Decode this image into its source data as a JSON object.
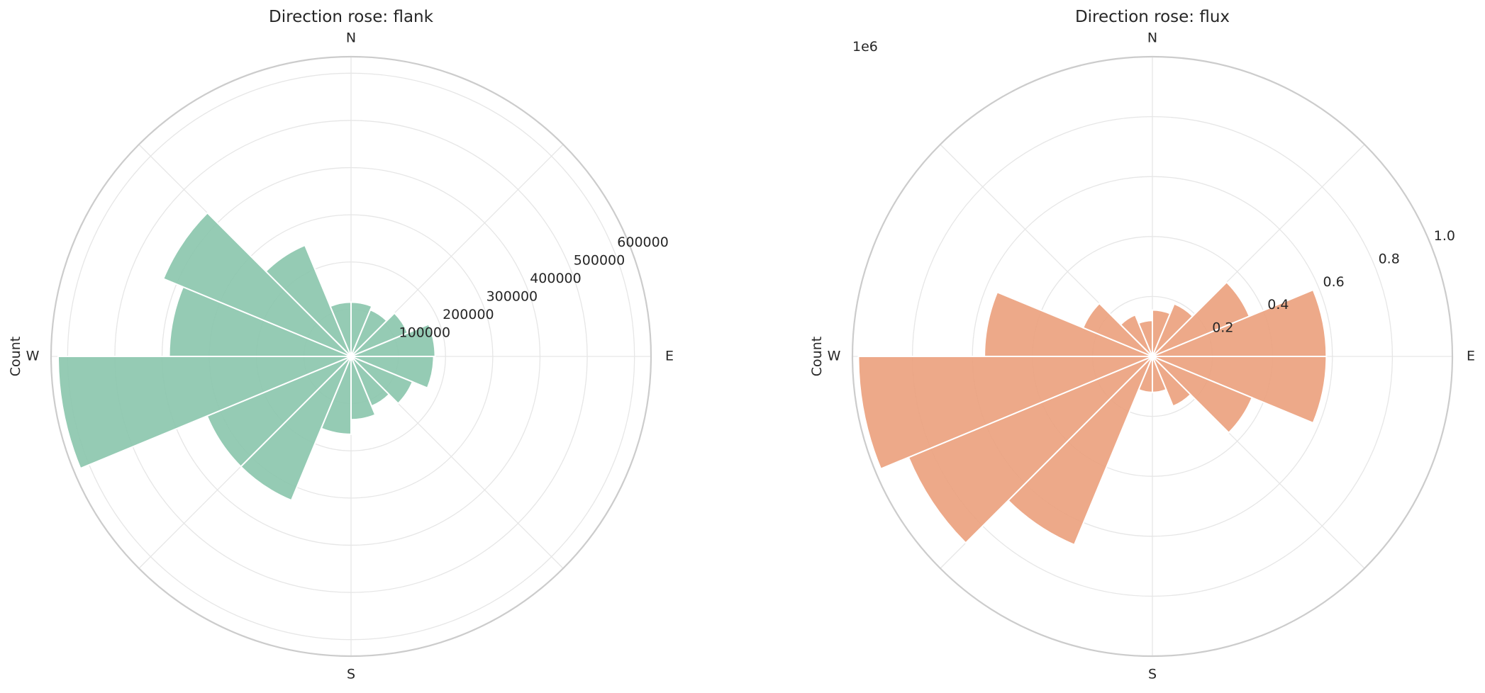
{
  "chart_data": [
    {
      "type": "bar",
      "subtype": "polar-rose",
      "title": "Direction rose: flank",
      "color": "#8cc7ae",
      "direction_labels": [
        "N",
        "E",
        "S",
        "W"
      ],
      "ylabel": "Count",
      "offset_label": "",
      "rtick_labels": [
        "100000",
        "200000",
        "300000",
        "400000",
        "500000",
        "600000"
      ],
      "rticks": [
        100000,
        200000,
        300000,
        400000,
        500000,
        600000
      ],
      "rmax": 635000,
      "bin_width_deg": 22.5,
      "bin_centers_deg": [
        11.25,
        33.75,
        56.25,
        78.75,
        101.25,
        123.75,
        146.25,
        168.75,
        191.25,
        213.75,
        236.25,
        258.75,
        281.25,
        303.75,
        326.25,
        348.75
      ],
      "values": [
        115000,
        107000,
        130000,
        178000,
        175000,
        141000,
        114000,
        134000,
        165000,
        330000,
        330000,
        620000,
        385000,
        430000,
        255000,
        115000
      ]
    },
    {
      "type": "bar",
      "subtype": "polar-rose",
      "title": "Direction rose: flux",
      "color": "#eba27f",
      "direction_labels": [
        "N",
        "E",
        "S",
        "W"
      ],
      "ylabel": "Count",
      "offset_label": "1e6",
      "rtick_labels": [
        "0.2",
        "0.4",
        "0.6",
        "0.8",
        "1.0"
      ],
      "rticks": [
        0.2,
        0.4,
        0.6,
        0.8,
        1.0
      ],
      "rmax": 1.0,
      "bin_width_deg": 22.5,
      "bin_centers_deg": [
        11.25,
        33.75,
        56.25,
        78.75,
        101.25,
        123.75,
        146.25,
        168.75,
        191.25,
        213.75,
        236.25,
        258.75,
        281.25,
        303.75,
        326.25,
        348.75
      ],
      "values": [
        0.155,
        0.19,
        0.35,
        0.58,
        0.58,
        0.36,
        0.18,
        0.12,
        0.12,
        0.68,
        0.88,
        0.98,
        0.56,
        0.25,
        0.15,
        0.12
      ]
    }
  ]
}
